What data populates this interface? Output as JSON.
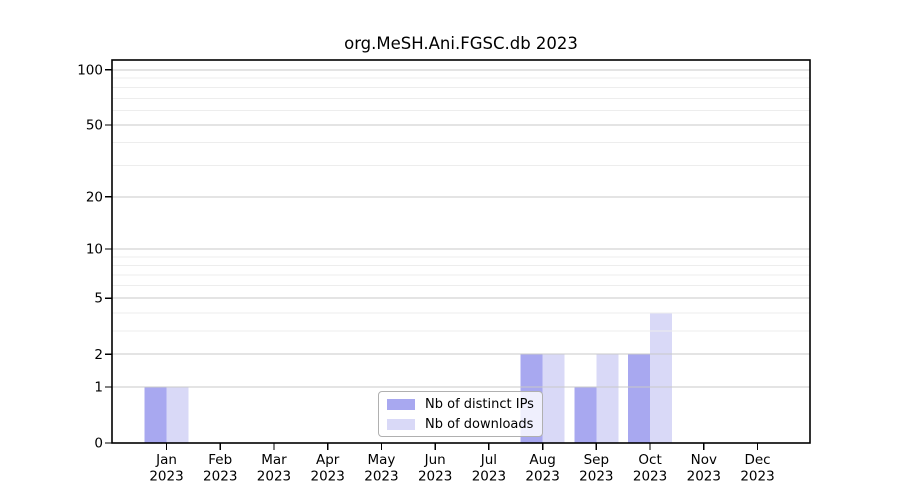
{
  "page": {
    "background": "#ffffff"
  },
  "chart_data": {
    "type": "bar",
    "title": "org.MeSH.Ani.FGSC.db 2023",
    "categories": [
      "Jan",
      "Feb",
      "Mar",
      "Apr",
      "May",
      "Jun",
      "Jul",
      "Aug",
      "Sep",
      "Oct",
      "Nov",
      "Dec"
    ],
    "category_year_labels": [
      "2023",
      "2023",
      "2023",
      "2023",
      "2023",
      "2023",
      "2023",
      "2023",
      "2023",
      "2023",
      "2023",
      "2023"
    ],
    "series": [
      {
        "name": "Nb of distinct IPs",
        "color": "#a8a8f0",
        "values": [
          1,
          0,
          0,
          0,
          0,
          0,
          0,
          2,
          1,
          2,
          0,
          0
        ]
      },
      {
        "name": "Nb of downloads",
        "color": "#d9d9f7",
        "values": [
          1,
          0,
          0,
          0,
          0,
          0,
          0,
          2,
          2,
          4,
          0,
          0
        ]
      }
    ],
    "yscale": "log1p",
    "ylim": [
      0,
      113
    ],
    "y_major_ticks": [
      0,
      1,
      2,
      5,
      10,
      20,
      50,
      100
    ],
    "y_minor_gridlines": [
      3,
      4,
      6,
      7,
      8,
      9,
      30,
      40,
      60,
      70,
      80,
      90
    ],
    "grid": "on",
    "legend_position": "bottom-center",
    "colors": {
      "axis": "#000000",
      "text": "#000000",
      "major_grid": "#c9c9c9",
      "minor_grid": "#ededed",
      "legend_border": "#b0b0b0",
      "legend_bg": "rgba(255,255,255,0.82)"
    }
  }
}
